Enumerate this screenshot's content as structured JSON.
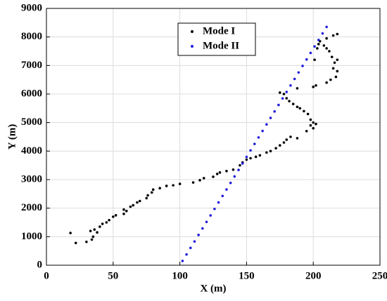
{
  "chart_data": {
    "type": "scatter",
    "xlabel": "X (m)",
    "ylabel": "Y (m)",
    "xlim": [
      0,
      250
    ],
    "ylim": [
      0,
      9000
    ],
    "xticks": [
      0,
      50,
      100,
      150,
      200,
      250
    ],
    "yticks": [
      0,
      1000,
      2000,
      3000,
      4000,
      5000,
      6000,
      7000,
      8000,
      9000
    ],
    "grid": true,
    "legend": "top",
    "series": [
      {
        "name": "Mode I",
        "color": "#000000",
        "x": [
          18,
          22,
          30,
          33,
          34,
          35,
          36,
          38,
          40,
          42,
          45,
          47,
          50,
          52,
          58,
          58,
          60,
          63,
          65,
          68,
          70,
          75,
          76,
          79,
          80,
          85,
          90,
          95,
          100,
          110,
          115,
          118,
          125,
          128,
          130,
          135,
          140,
          145,
          147,
          150,
          153,
          157,
          160,
          165,
          168,
          172,
          175,
          178,
          180,
          183,
          188,
          195,
          198,
          200,
          202,
          200,
          198,
          196,
          193,
          190,
          188,
          185,
          182,
          180,
          178,
          175,
          188,
          200,
          202,
          210,
          213,
          217,
          218,
          215,
          216,
          218,
          214,
          212,
          210,
          208,
          204,
          203,
          205,
          210,
          215,
          218,
          201
        ],
        "values": [
          1130,
          780,
          820,
          1200,
          900,
          1000,
          1250,
          1150,
          1350,
          1450,
          1500,
          1580,
          1700,
          1750,
          1800,
          1950,
          1900,
          2050,
          2100,
          2200,
          2250,
          2350,
          2450,
          2550,
          2650,
          2700,
          2780,
          2800,
          2850,
          2900,
          2980,
          3050,
          3100,
          3200,
          3250,
          3300,
          3350,
          3500,
          3600,
          3700,
          3750,
          3800,
          3850,
          3950,
          4000,
          4100,
          4200,
          4300,
          4400,
          4500,
          4450,
          4700,
          4900,
          5000,
          4950,
          4800,
          5100,
          5300,
          5400,
          5500,
          5550,
          5650,
          5750,
          5850,
          6000,
          6050,
          6200,
          6250,
          6300,
          6400,
          6500,
          6600,
          6800,
          6900,
          7100,
          7200,
          7300,
          7500,
          7600,
          7700,
          7750,
          7600,
          7850,
          7950,
          8050,
          8100,
          7200
        ]
      },
      {
        "name": "Mode II",
        "color": "#1f1fd8",
        "x": [
          102,
          105,
          108,
          111,
          114,
          117,
          120,
          123,
          126,
          129,
          132,
          135,
          138,
          141,
          144,
          147,
          150,
          153,
          156,
          159,
          162,
          165,
          168,
          171,
          174,
          177,
          180,
          183,
          186,
          189,
          192,
          195,
          198,
          201,
          204,
          207,
          210
        ],
        "values": [
          150,
          378,
          606,
          833,
          1061,
          1289,
          1517,
          1745,
          1972,
          2200,
          2428,
          2656,
          2884,
          3111,
          3339,
          3567,
          3795,
          4023,
          4250,
          4478,
          4706,
          4934,
          5162,
          5389,
          5617,
          5845,
          6073,
          6301,
          6528,
          6756,
          6984,
          7212,
          7440,
          7667,
          7895,
          8123,
          8351
        ]
      }
    ]
  }
}
